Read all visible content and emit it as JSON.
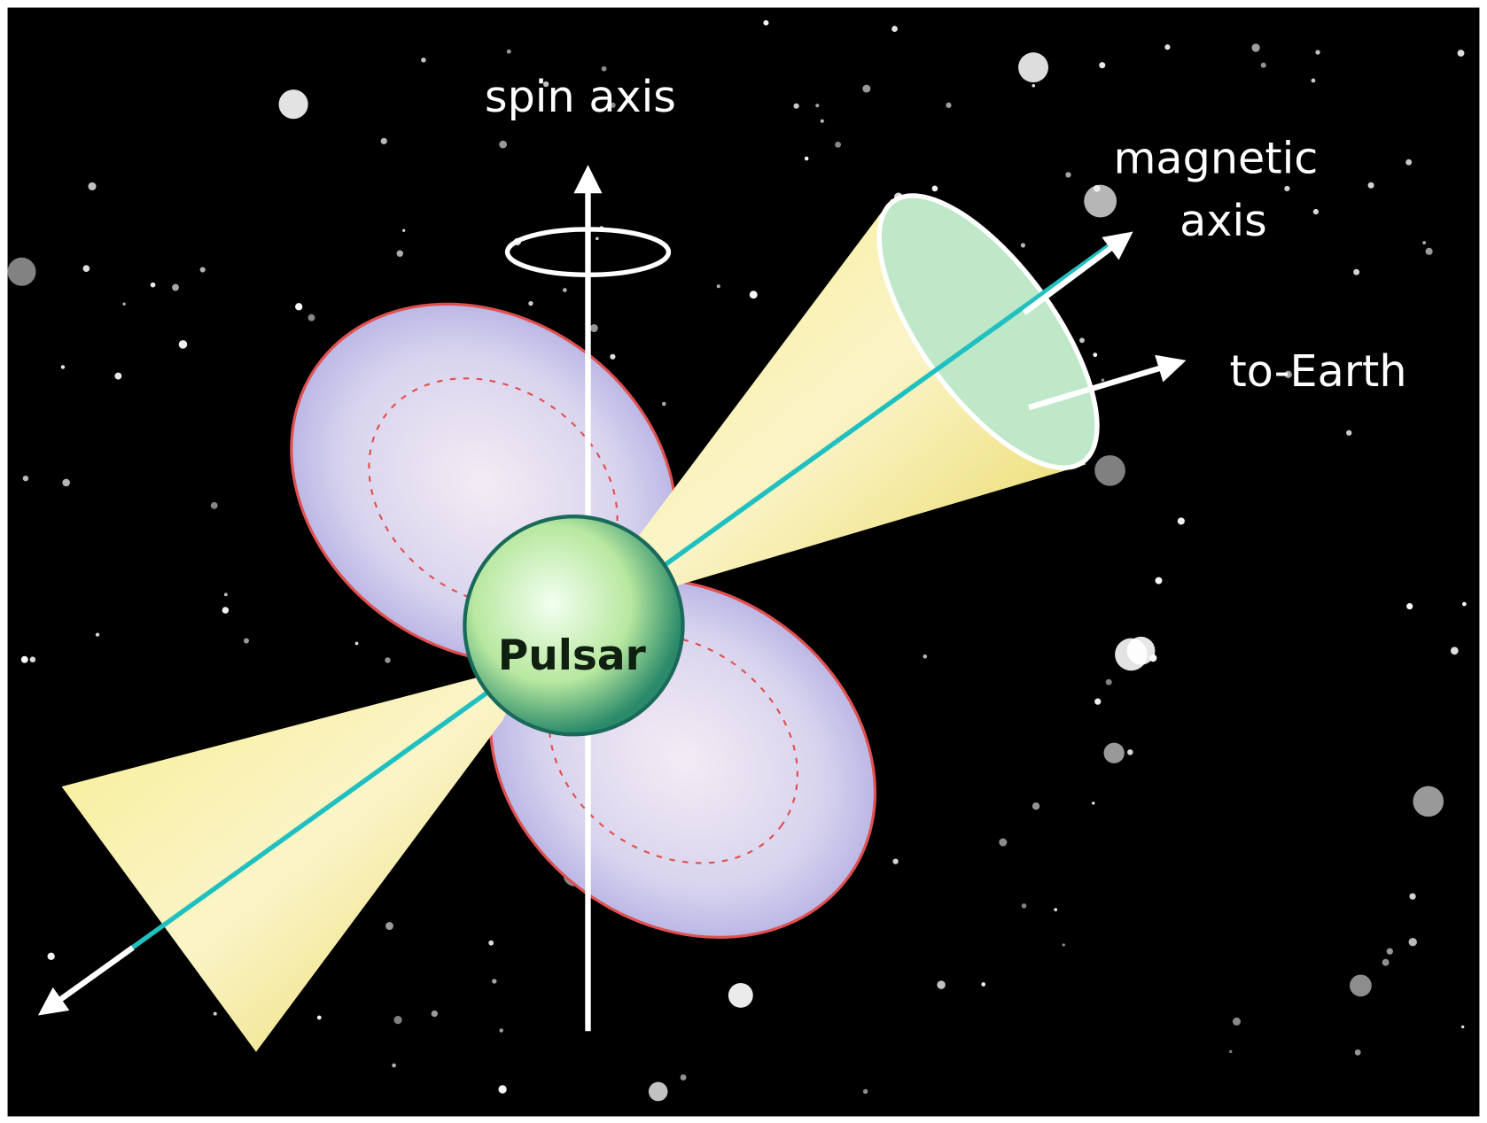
{
  "labels": {
    "spin_axis": "spin axis",
    "magnetic_axis": [
      "magnetic",
      "axis"
    ],
    "to_earth": "to-Earth",
    "pulsar": "Pulsar"
  }
}
